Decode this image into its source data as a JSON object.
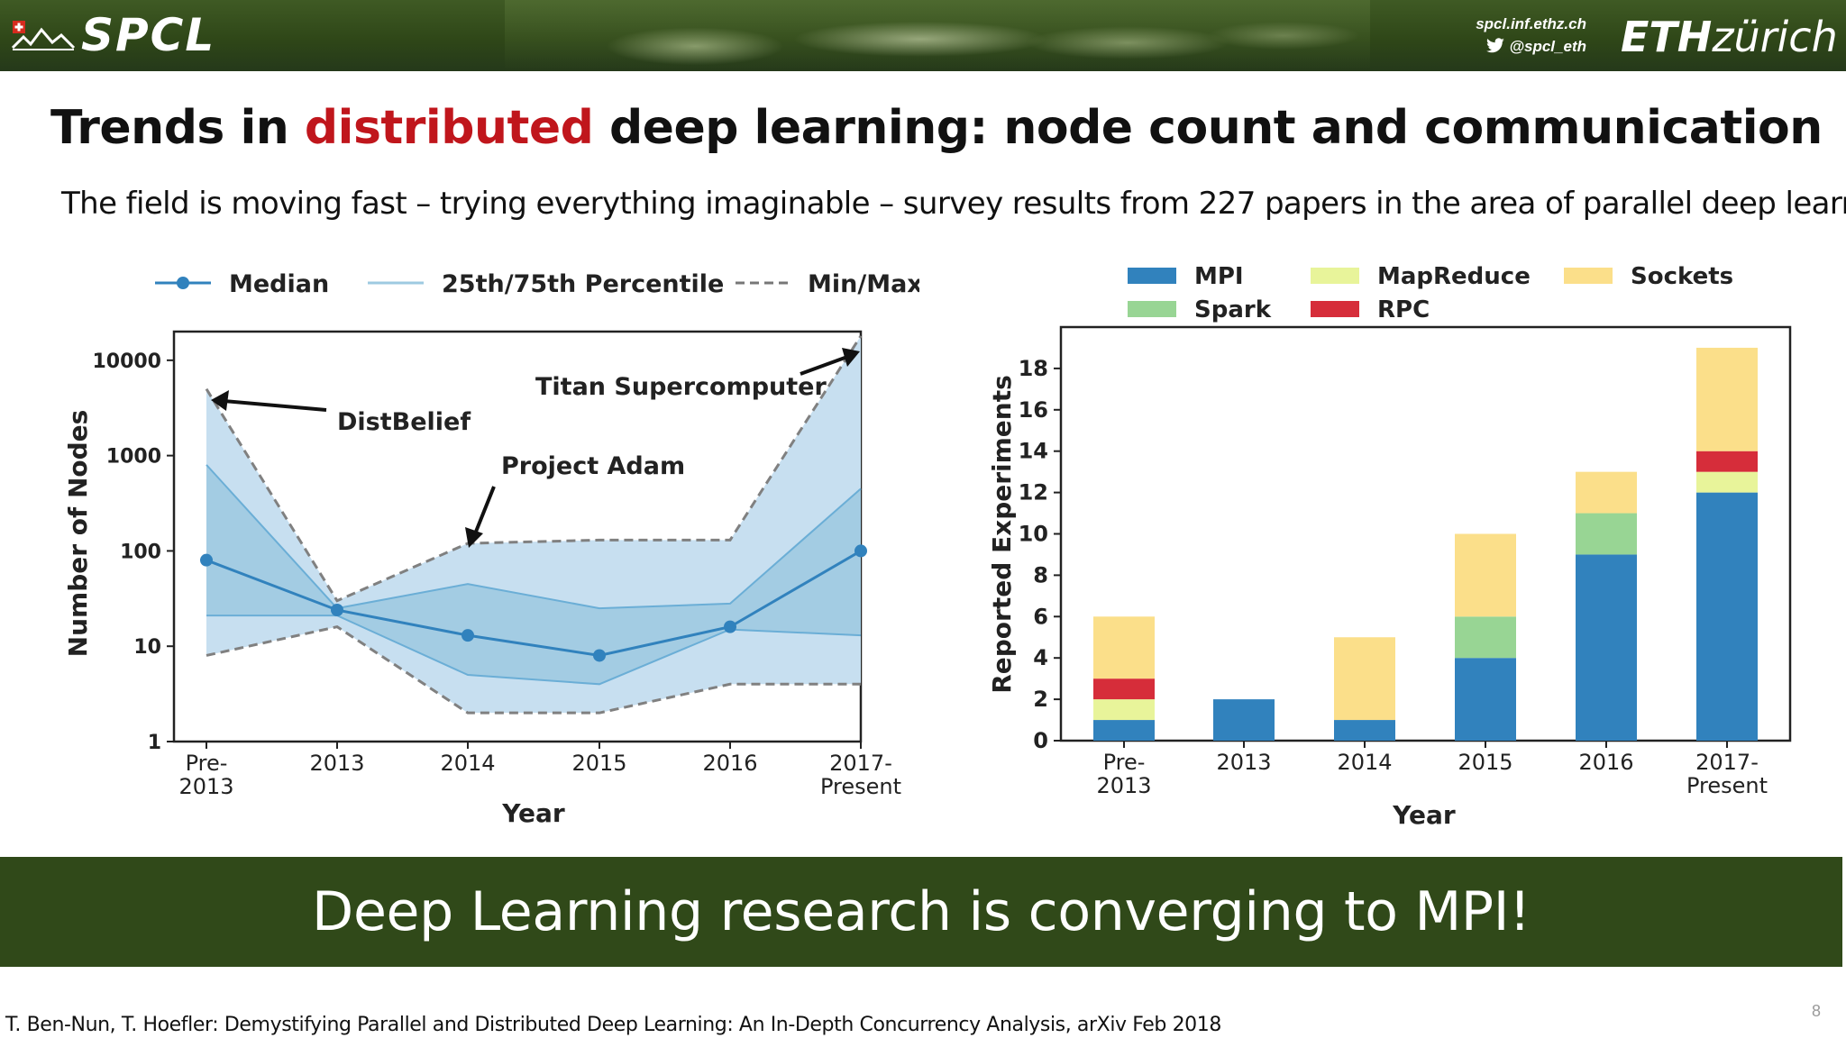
{
  "header": {
    "logo_text": "SPCL",
    "link_site": "spcl.inf.ethz.ch",
    "link_twitter": "@spcl_eth",
    "eth_bold": "ETH",
    "eth_rest": "zürich"
  },
  "slide": {
    "title_part1": "Trends in ",
    "title_highlight": "distributed",
    "title_part2": " deep learning: node count and communication",
    "subtitle": "The field is moving fast – trying everything imaginable – survey results from 227 papers in the area of parallel deep learning",
    "banner": "Deep Learning research is converging to MPI!",
    "citation": "T. Ben-Nun, T. Hoefler: Demystifying Parallel and Distributed Deep Learning: An In-Depth Concurrency Analysis, arXiv Feb 2018",
    "page_number": "8"
  },
  "colors": {
    "header_green": "#2f4718",
    "banner_green": "#304919",
    "title_highlight": "#c0161c",
    "median": "#3182bd",
    "mpi": "#3182bd",
    "spark": "#98d594",
    "mapreduce": "#e8f49a",
    "rpc": "#d62d3a",
    "sockets": "#fbdf8a"
  },
  "chart_data": [
    {
      "type": "line",
      "scale": "log",
      "categories": [
        "Pre-\n2013",
        "2013",
        "2014",
        "2015",
        "2016",
        "2017-\nPresent"
      ],
      "xlabel": "Year",
      "ylabel": "Number of Nodes",
      "yticks": [
        1,
        10,
        100,
        1000,
        10000
      ],
      "ytick_labels": [
        "1",
        "10",
        "100",
        "1000",
        "10000"
      ],
      "ylim": [
        1,
        20000
      ],
      "legend": [
        "Median",
        "25th/75th Percentile",
        "Min/Max"
      ],
      "legend_position": "top",
      "series": [
        {
          "name": "Median",
          "values": [
            80,
            24,
            13,
            8,
            16,
            100
          ]
        },
        {
          "name": "25th Percentile",
          "values": [
            21,
            21,
            5,
            4,
            15,
            13
          ]
        },
        {
          "name": "75th Percentile",
          "values": [
            800,
            25,
            45,
            25,
            28,
            450
          ]
        },
        {
          "name": "Min",
          "values": [
            8,
            16,
            2,
            2,
            4,
            4
          ]
        },
        {
          "name": "Max",
          "values": [
            5000,
            30,
            120,
            130,
            130,
            18000
          ]
        }
      ],
      "annotations": [
        {
          "text": "DistBelief",
          "points_to": "Pre-\n2013"
        },
        {
          "text": "Project Adam",
          "points_to": "2014"
        },
        {
          "text": "Titan Supercomputer",
          "points_to": "2017-\nPresent"
        }
      ]
    },
    {
      "type": "bar",
      "stacked": true,
      "categories": [
        "Pre-\n2013",
        "2013",
        "2014",
        "2015",
        "2016",
        "2017-\nPresent"
      ],
      "xlabel": "Year",
      "ylabel": "Reported Experiments",
      "ylim": [
        0,
        20
      ],
      "yticks": [
        0,
        2,
        4,
        6,
        8,
        10,
        12,
        14,
        16,
        18
      ],
      "legend_position": "top",
      "series": [
        {
          "name": "MPI",
          "values": [
            1,
            2,
            1,
            4,
            9,
            12
          ]
        },
        {
          "name": "Spark",
          "values": [
            0,
            0,
            0,
            2,
            2,
            0
          ]
        },
        {
          "name": "MapReduce",
          "values": [
            1,
            0,
            0,
            0,
            0,
            1
          ]
        },
        {
          "name": "RPC",
          "values": [
            1,
            0,
            0,
            0,
            0,
            1
          ]
        },
        {
          "name": "Sockets",
          "values": [
            3,
            0,
            4,
            4,
            2,
            5
          ]
        }
      ]
    }
  ]
}
